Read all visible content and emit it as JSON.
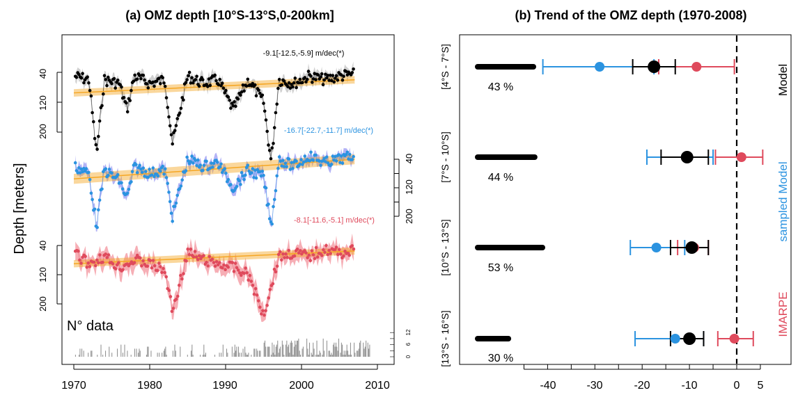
{
  "panel_a": {
    "title": "(a) OMZ depth [10°S-13°S,0-200km]",
    "ylabel": "Depth [meters]",
    "x_ticks": [
      "1970",
      "1980",
      "1990",
      "2000",
      "2010"
    ],
    "left_ticks_model": [
      "40",
      "120",
      "200"
    ],
    "right_ticks_sampled": [
      "40",
      "120",
      "200"
    ],
    "left_ticks_imarpe": [
      "40",
      "120",
      "200"
    ],
    "ndata_label": "N° data",
    "ndata_ticks": [
      "0",
      "6",
      "12"
    ],
    "annotations": {
      "model": "-9.1[-12.5,-5.9] m/dec(*)",
      "sampled": "-16.7[-22.7,-11.7] m/dec(*)",
      "imarpe": "-8.1[-11.6,-5.1] m/dec(*)"
    }
  },
  "panel_b": {
    "title": "(b) Trend of the OMZ depth (1970-2008)",
    "x_ticks": [
      "-40",
      "-30",
      "-20",
      "-10",
      "0",
      "5"
    ],
    "row_labels": [
      "[4°S - 7°S]",
      "[7°S - 10°S]",
      "[10°S - 13°S]",
      "[13°S - 16°S]"
    ],
    "percent_labels": [
      "43 %",
      "44 %",
      "53 %",
      "30 %"
    ],
    "legend": {
      "model": "Model",
      "sampled": "sampled Model",
      "imarpe": "IMARPE"
    }
  },
  "colors": {
    "model": "#000000",
    "sampled": "#2b93e0",
    "imarpe": "#df4a5c",
    "trend": "#f5a623",
    "band_model": "#c8c8c8",
    "band_sampled": "#8080f0",
    "band_imarpe": "#f4a0a8"
  },
  "chart_data": [
    {
      "type": "line",
      "title": "(a) OMZ depth [10°S-13°S,0-200km]",
      "xlabel": "",
      "ylabel": "Depth [meters]",
      "xlim": [
        1970,
        2010
      ],
      "ylim": [
        200,
        40
      ],
      "series": [
        {
          "name": "Model",
          "trend": "-9.1[-12.5,-5.9] m/dec(*)",
          "trend_line": {
            "x": [
              1970,
              2007
            ],
            "y": [
              95,
              60
            ]
          },
          "x": [
            1970,
            1972,
            1973,
            1974,
            1976,
            1977,
            1978,
            1980,
            1982,
            1983,
            1985,
            1987,
            1989,
            1991,
            1993,
            1995,
            1996,
            1997,
            1999,
            2001,
            2003,
            2005,
            2007
          ],
          "y": [
            50,
            60,
            260,
            60,
            70,
            140,
            50,
            70,
            60,
            230,
            50,
            70,
            60,
            140,
            60,
            120,
            280,
            60,
            70,
            50,
            60,
            50,
            45
          ]
        },
        {
          "name": "sampled Model",
          "trend": "-16.7[-22.7,-11.7] m/dec(*)",
          "trend_line": {
            "x": [
              1970,
              2007
            ],
            "y": [
              95,
              40
            ]
          },
          "x": [
            1970,
            1972,
            1973,
            1974,
            1976,
            1977,
            1978,
            1980,
            1982,
            1983,
            1985,
            1987,
            1989,
            1991,
            1993,
            1995,
            1996,
            1997,
            1999,
            2001,
            2003,
            2005,
            2007
          ],
          "y": [
            60,
            80,
            230,
            70,
            100,
            150,
            60,
            80,
            70,
            200,
            40,
            60,
            50,
            120,
            70,
            90,
            230,
            40,
            60,
            30,
            50,
            40,
            30
          ]
        },
        {
          "name": "IMARPE",
          "trend": "-8.1[-11.6,-5.1] m/dec(*)",
          "trend_line": {
            "x": [
              1970,
              2007
            ],
            "y": [
              90,
              55
            ]
          },
          "x": [
            1970,
            1972,
            1974,
            1976,
            1978,
            1980,
            1982,
            1983,
            1985,
            1987,
            1989,
            1991,
            1993,
            1995,
            1996,
            1997,
            1999,
            2001,
            2003,
            2005,
            2007
          ],
          "y": [
            60,
            90,
            70,
            100,
            80,
            90,
            110,
            220,
            60,
            80,
            90,
            100,
            120,
            230,
            150,
            70,
            60,
            70,
            50,
            60,
            55
          ]
        }
      ],
      "ndata": {
        "label": "N° data",
        "ylim": [
          0,
          12
        ]
      }
    },
    {
      "type": "scatter",
      "title": "(b) Trend of the OMZ depth (1970-2008)",
      "xlabel": "",
      "ylabel": "",
      "xlim": [
        -50,
        8
      ],
      "categories": [
        "[4°S - 7°S]",
        "[7°S - 10°S]",
        "[10°S - 13°S]",
        "[13°S - 16°S]"
      ],
      "percent": [
        "43 %",
        "44 %",
        "53 %",
        "30 %"
      ],
      "series": [
        {
          "name": "Model",
          "values": [
            -17.5,
            -10.5,
            -9.5,
            -10
          ],
          "lower": [
            -22,
            -16,
            -14,
            -14
          ],
          "upper": [
            -13,
            -6,
            -6,
            -7
          ]
        },
        {
          "name": "sampled Model",
          "values": [
            -29,
            -10.5,
            -17,
            -13
          ],
          "lower": [
            -41,
            -19,
            -22.5,
            -21.5
          ],
          "upper": [
            -17.5,
            -5,
            -11,
            -7
          ]
        },
        {
          "name": "IMARPE",
          "values": [
            -8.5,
            1,
            -9,
            -0.5
          ],
          "lower": [
            -16.5,
            -4.5,
            -12.5,
            -4
          ],
          "upper": [
            -0.5,
            5.5,
            -6,
            3.5
          ]
        }
      ]
    }
  ]
}
